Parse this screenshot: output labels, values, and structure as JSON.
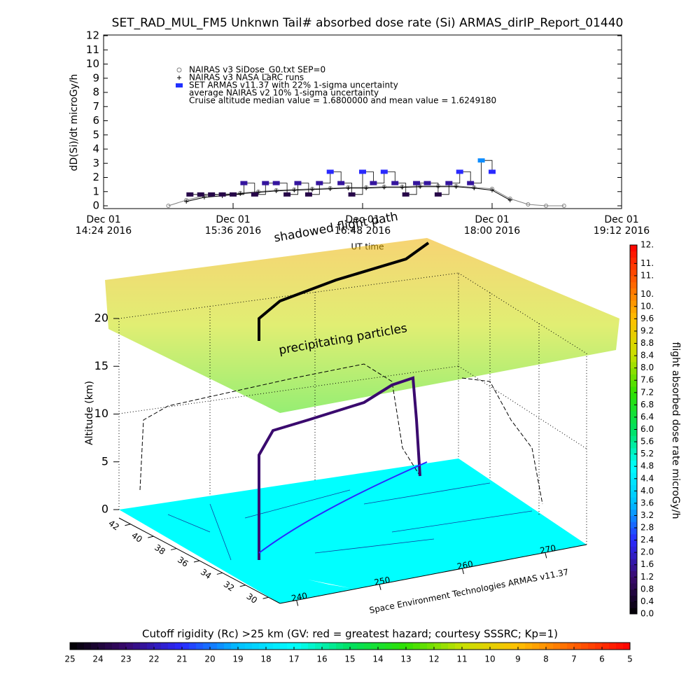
{
  "chart_data": [
    {
      "type": "line",
      "title": "SET_RAD_MUL_FM5 Unknwn Tail#  absorbed dose rate (Si) ARMAS_dirIP_Report_01440",
      "y_label": "dD(Si)/dt microGy/h",
      "x_label": "UT time",
      "xlim": [
        "2016-12-01T14:24",
        "2016-12-01T19:12"
      ],
      "xticks": [
        {
          "value": "2016-12-01T14:24",
          "label": [
            "Dec 01",
            "14:24 2016"
          ]
        },
        {
          "value": "2016-12-01T15:36",
          "label": [
            "Dec 01",
            "15:36 2016"
          ]
        },
        {
          "value": "2016-12-01T16:48",
          "label": [
            "Dec 01",
            "16:48 2016"
          ]
        },
        {
          "value": "2016-12-01T18:00",
          "label": [
            "Dec 01",
            "18:00 2016"
          ]
        },
        {
          "value": "2016-12-01T19:12",
          "label": [
            "Dec 01",
            "19:12 2016"
          ]
        }
      ],
      "ylim": [
        0,
        12
      ],
      "yticks": [
        0,
        1,
        2,
        3,
        4,
        5,
        6,
        7,
        8,
        9,
        10,
        11,
        12
      ],
      "series": [
        {
          "name": "NAIRAS v3 SiDose_G0.txt SEP=0",
          "color": "#808080",
          "x": [
            "2016-12-01T15:00",
            "2016-12-01T15:10",
            "2016-12-01T15:20",
            "2016-12-01T15:30",
            "2016-12-01T15:40",
            "2016-12-01T15:50",
            "2016-12-01T16:00",
            "2016-12-01T16:10",
            "2016-12-01T16:20",
            "2016-12-01T16:30",
            "2016-12-01T16:40",
            "2016-12-01T16:50",
            "2016-12-01T17:00",
            "2016-12-01T17:10",
            "2016-12-01T17:20",
            "2016-12-01T17:30",
            "2016-12-01T17:40",
            "2016-12-01T17:50",
            "2016-12-01T18:00",
            "2016-12-01T18:10",
            "2016-12-01T18:20",
            "2016-12-01T18:30",
            "2016-12-01T18:40"
          ],
          "values": [
            0,
            0.4,
            0.7,
            0.8,
            0.9,
            1.0,
            1.1,
            1.15,
            1.2,
            1.25,
            1.3,
            1.3,
            1.35,
            1.35,
            1.4,
            1.4,
            1.4,
            1.3,
            1.2,
            0.5,
            0.1,
            0,
            0
          ]
        },
        {
          "name": "NAIRAS v3 NASA LaRC runs",
          "color": "#000000",
          "x": [
            "2016-12-01T15:10",
            "2016-12-01T15:20",
            "2016-12-01T15:30",
            "2016-12-01T15:40",
            "2016-12-01T15:50",
            "2016-12-01T16:00",
            "2016-12-01T16:10",
            "2016-12-01T16:20",
            "2016-12-01T16:30",
            "2016-12-01T16:40",
            "2016-12-01T16:50",
            "2016-12-01T17:00",
            "2016-12-01T17:10",
            "2016-12-01T17:20",
            "2016-12-01T17:30",
            "2016-12-01T17:40",
            "2016-12-01T17:50",
            "2016-12-01T18:00",
            "2016-12-01T18:10"
          ],
          "values": [
            0.3,
            0.6,
            0.7,
            0.85,
            0.95,
            1.05,
            1.1,
            1.15,
            1.2,
            1.25,
            1.25,
            1.3,
            1.3,
            1.35,
            1.35,
            1.35,
            1.25,
            1.1,
            0.4
          ]
        },
        {
          "name": "SET ARMAS v11.37 with 22% 1-sigma uncertainty",
          "color": "#2030ff",
          "x": [
            "2016-12-01T15:12",
            "2016-12-01T15:18",
            "2016-12-01T15:24",
            "2016-12-01T15:30",
            "2016-12-01T15:36",
            "2016-12-01T15:42",
            "2016-12-01T15:48",
            "2016-12-01T15:54",
            "2016-12-01T16:00",
            "2016-12-01T16:06",
            "2016-12-01T16:12",
            "2016-12-01T16:18",
            "2016-12-01T16:24",
            "2016-12-01T16:30",
            "2016-12-01T16:36",
            "2016-12-01T16:42",
            "2016-12-01T16:48",
            "2016-12-01T16:54",
            "2016-12-01T17:00",
            "2016-12-01T17:06",
            "2016-12-01T17:12",
            "2016-12-01T17:18",
            "2016-12-01T17:24",
            "2016-12-01T17:30",
            "2016-12-01T17:36",
            "2016-12-01T17:42",
            "2016-12-01T17:48",
            "2016-12-01T17:54",
            "2016-12-01T18:00"
          ],
          "values": [
            0.8,
            0.8,
            0.8,
            0.8,
            0.8,
            1.6,
            0.8,
            1.6,
            1.6,
            0.8,
            1.6,
            0.8,
            1.6,
            2.4,
            1.6,
            0.8,
            2.4,
            1.6,
            2.4,
            1.6,
            0.8,
            1.6,
            1.6,
            0.8,
            1.6,
            2.4,
            1.6,
            3.2,
            2.4
          ]
        }
      ],
      "annotations": [
        "average NAIRAS v2 10% 1-sigma uncertainty",
        "Cruise altitude median value = 1.6800000 and mean value = 1.6249180"
      ]
    }
  ],
  "scene": {
    "z_label": "Altitude (km)",
    "zlim": [
      0,
      20
    ],
    "zticks": [
      0,
      5,
      10,
      15,
      20
    ],
    "latlim": [
      43,
      29
    ],
    "lat_ticks": [
      42,
      40,
      38,
      36,
      34,
      32,
      30
    ],
    "lonlim": [
      238,
      275
    ],
    "lon_ticks": [
      240,
      250,
      260,
      270
    ],
    "annotations": [
      "shadowed flight path",
      "precipitating particles"
    ],
    "credit": "Space Environment Technologies ARMAS v11.37"
  },
  "dose_colorbar": {
    "label": "flight absorbed dose rate microGy/h",
    "clim": [
      0,
      12
    ],
    "colors": [
      "#000000",
      "#3a0a6e",
      "#2a2aff",
      "#00bfff",
      "#00ffff",
      "#00e060",
      "#30e000",
      "#c8e000",
      "#ffc000",
      "#ff6000",
      "#ff0000"
    ],
    "ticks": [
      {
        "value": 0,
        "label": "0.0"
      },
      0.4,
      0.8,
      1.2,
      1.6,
      {
        "value": 2,
        "label": "2.0"
      },
      2.4,
      2.8,
      3.2,
      3.6,
      {
        "value": 4,
        "label": "4.0"
      },
      4.4,
      4.8,
      5.2,
      5.6,
      {
        "value": 6,
        "label": "6.0"
      },
      6.4,
      6.8,
      7.2,
      7.6,
      {
        "value": 8,
        "label": "8.0"
      },
      8.4,
      8.8,
      9.2,
      9.6,
      {
        "value": 10,
        "label": "10."
      },
      {
        "value": 10.4,
        "label": "10."
      },
      {
        "value": 11,
        "label": "11."
      },
      {
        "value": 11.4,
        "label": "11."
      },
      {
        "value": 12,
        "label": "12."
      }
    ]
  },
  "rigidity_colorbar": {
    "label": "Cutoff rigidity (Rc) >25 km (GV: red = greatest hazard; courtesy SSSRC; Kp=1)",
    "clim": [
      25,
      5
    ],
    "ticks": [
      25,
      24,
      23,
      22,
      21,
      20,
      19,
      18,
      17,
      16,
      15,
      14,
      13,
      12,
      11,
      10,
      9,
      8,
      7,
      6,
      5
    ]
  }
}
